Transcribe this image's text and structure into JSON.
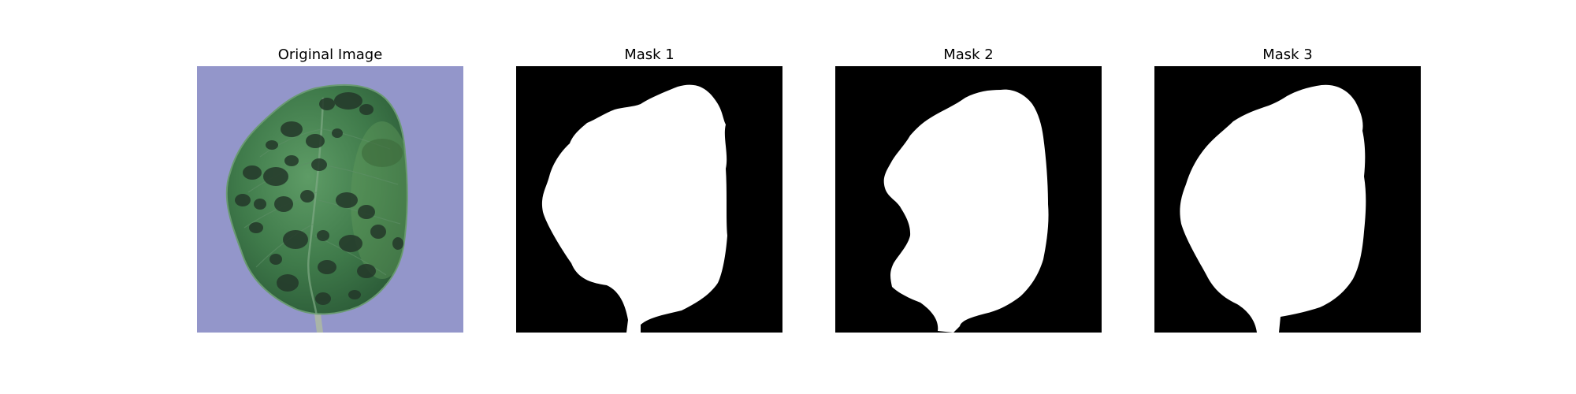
{
  "figure": {
    "panels": [
      {
        "title": "Original Image",
        "content": "leaf-photo"
      },
      {
        "title": "Mask 1",
        "content": "binary-mask"
      },
      {
        "title": "Mask 2",
        "content": "binary-mask"
      },
      {
        "title": "Mask 3",
        "content": "binary-mask"
      }
    ],
    "colors": {
      "background": "#8f92c6",
      "leaf": "#3f7a4a",
      "lesion": "#24382a",
      "mask_fg": "#ffffff",
      "mask_bg": "#000000"
    }
  }
}
